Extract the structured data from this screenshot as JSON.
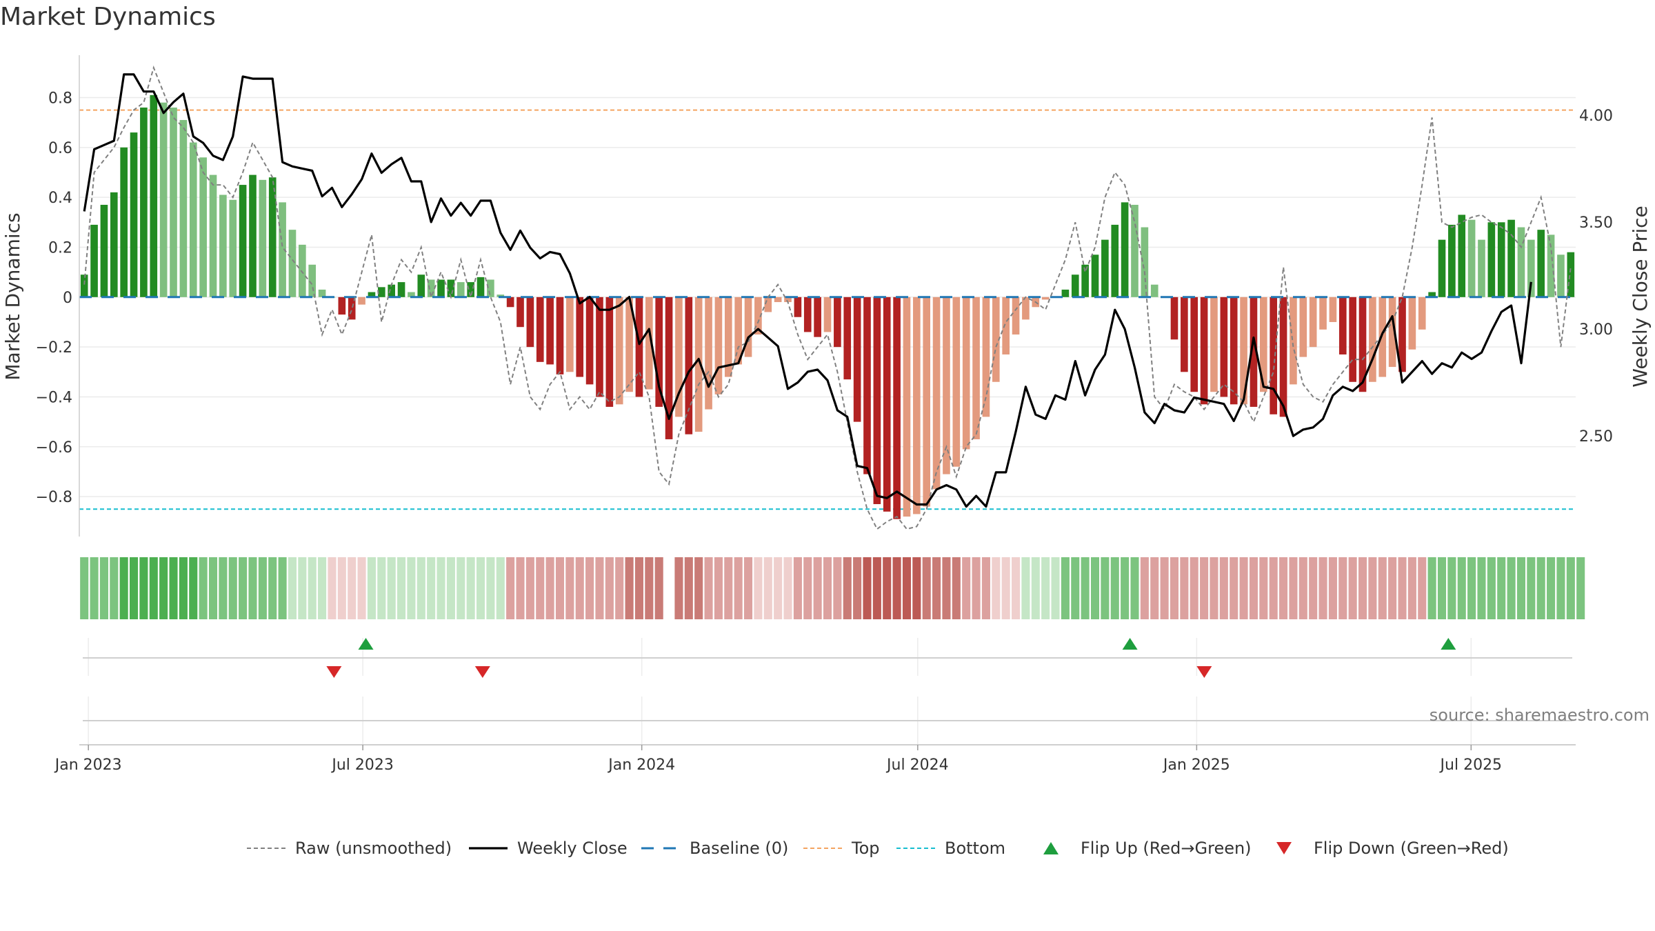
{
  "title": "Market Dynamics",
  "source": "source: sharemaestro.com",
  "colors": {
    "green_dark": "#228b22",
    "green_light": "#7fbf7f",
    "red_dark": "#b22222",
    "red_light": "#e39a7e",
    "price": "#000000",
    "raw": "#808080",
    "baseline": "#1f77b4",
    "top": "#f4a460",
    "bottom": "#17becf",
    "flip_up": "#1e9e3e",
    "flip_down": "#d62728"
  },
  "chart_data": {
    "type": "bar",
    "title": "Market Dynamics",
    "ylabel": "Market Dynamics",
    "y2label": "Weekly Close Price",
    "ylim": [
      -0.96,
      0.97
    ],
    "y2lim": [
      2.03,
      4.28
    ],
    "yticks": [
      0.8,
      0.6,
      0.4,
      0.2,
      0,
      -0.2,
      -0.4,
      -0.6,
      -0.8
    ],
    "ytick_labels": [
      "0.8",
      "0.6",
      "0.4",
      "0.2",
      "0",
      "−0.2",
      "−0.4",
      "−0.6",
      "−0.8"
    ],
    "y2ticks": [
      4.0,
      3.5,
      3.0,
      2.5
    ],
    "y2tick_labels": [
      "4.00",
      "3.50",
      "3.00",
      "2.50"
    ],
    "x_start": "2022-12-26",
    "x_end": "2025-09-08",
    "xticks": [
      "2023-01-01",
      "2023-07-01",
      "2024-01-01",
      "2024-07-01",
      "2025-01-01",
      "2025-07-01"
    ],
    "xtick_labels": [
      "Jan 2023",
      "Jul 2023",
      "Jan 2024",
      "Jul 2024",
      "Jan 2025",
      "Jul 2025"
    ],
    "top_line": 0.75,
    "bottom_line": -0.85,
    "baseline": 0,
    "bars": [
      0.09,
      0.29,
      0.37,
      0.42,
      0.6,
      0.66,
      0.76,
      0.81,
      0.78,
      0.76,
      0.71,
      0.62,
      0.56,
      0.49,
      0.41,
      0.39,
      0.45,
      0.49,
      0.47,
      0.48,
      0.38,
      0.27,
      0.21,
      0.13,
      0.03,
      0.0,
      -0.07,
      -0.09,
      -0.03,
      0.02,
      0.04,
      0.05,
      0.06,
      0.02,
      0.09,
      0.07,
      0.07,
      0.07,
      0.06,
      0.06,
      0.08,
      0.07,
      0.01,
      -0.04,
      -0.12,
      -0.2,
      -0.26,
      -0.27,
      -0.31,
      -0.3,
      -0.32,
      -0.35,
      -0.4,
      -0.44,
      -0.43,
      -0.38,
      -0.4,
      -0.37,
      -0.44,
      -0.57,
      -0.48,
      -0.55,
      -0.54,
      -0.45,
      -0.39,
      -0.32,
      -0.27,
      -0.24,
      -0.15,
      -0.06,
      -0.02,
      -0.02,
      -0.08,
      -0.14,
      -0.16,
      -0.14,
      -0.2,
      -0.33,
      -0.5,
      -0.71,
      -0.83,
      -0.86,
      -0.89,
      -0.88,
      -0.87,
      -0.84,
      -0.77,
      -0.71,
      -0.68,
      -0.61,
      -0.57,
      -0.48,
      -0.34,
      -0.23,
      -0.15,
      -0.09,
      -0.04,
      -0.01,
      0.0,
      0.03,
      0.09,
      0.13,
      0.17,
      0.23,
      0.29,
      0.38,
      0.37,
      0.28,
      0.05,
      0.0,
      -0.17,
      -0.3,
      -0.38,
      -0.43,
      -0.38,
      -0.4,
      -0.43,
      -0.43,
      -0.44,
      -0.38,
      -0.47,
      -0.48,
      -0.35,
      -0.24,
      -0.2,
      -0.13,
      -0.1,
      -0.23,
      -0.34,
      -0.38,
      -0.34,
      -0.32,
      -0.28,
      -0.3,
      -0.21,
      -0.13,
      0.02,
      0.23,
      0.29,
      0.33,
      0.31,
      0.23,
      0.3,
      0.3,
      0.31,
      0.28,
      0.23,
      0.27,
      0.25,
      0.17,
      0.18
    ],
    "raw": [
      0.05,
      0.5,
      0.55,
      0.6,
      0.68,
      0.75,
      0.78,
      0.92,
      0.82,
      0.72,
      0.68,
      0.62,
      0.5,
      0.45,
      0.45,
      0.4,
      0.5,
      0.62,
      0.55,
      0.48,
      0.2,
      0.15,
      0.1,
      0.05,
      -0.15,
      -0.05,
      -0.15,
      -0.05,
      0.1,
      0.25,
      -0.1,
      0.05,
      0.15,
      0.1,
      0.2,
      0.0,
      0.1,
      0.0,
      0.15,
      0.0,
      0.15,
      0.0,
      -0.1,
      -0.35,
      -0.2,
      -0.4,
      -0.45,
      -0.35,
      -0.3,
      -0.45,
      -0.4,
      -0.45,
      -0.38,
      -0.42,
      -0.4,
      -0.35,
      -0.3,
      -0.4,
      -0.7,
      -0.75,
      -0.55,
      -0.45,
      -0.35,
      -0.3,
      -0.4,
      -0.35,
      -0.2,
      -0.18,
      -0.1,
      0.0,
      0.05,
      -0.02,
      -0.15,
      -0.25,
      -0.2,
      -0.15,
      -0.3,
      -0.5,
      -0.7,
      -0.85,
      -0.93,
      -0.9,
      -0.88,
      -0.93,
      -0.92,
      -0.85,
      -0.7,
      -0.6,
      -0.72,
      -0.6,
      -0.55,
      -0.4,
      -0.2,
      -0.1,
      -0.05,
      0.0,
      -0.02,
      -0.05,
      0.05,
      0.15,
      0.3,
      0.1,
      0.2,
      0.4,
      0.5,
      0.45,
      0.3,
      0.1,
      -0.4,
      -0.45,
      -0.35,
      -0.38,
      -0.4,
      -0.45,
      -0.4,
      -0.35,
      -0.38,
      -0.42,
      -0.5,
      -0.4,
      -0.3,
      0.12,
      -0.2,
      -0.35,
      -0.4,
      -0.42,
      -0.35,
      -0.3,
      -0.25,
      -0.25,
      -0.2,
      -0.15,
      -0.1,
      0.0,
      0.2,
      0.45,
      0.72,
      0.3,
      0.28,
      0.3,
      0.32,
      0.33,
      0.3,
      0.28,
      0.25,
      0.2,
      0.3,
      0.4,
      0.2,
      -0.2,
      0.12
    ],
    "price": [
      3.55,
      3.84,
      3.86,
      3.88,
      4.19,
      4.19,
      4.11,
      4.11,
      4.01,
      4.06,
      4.1,
      3.9,
      3.87,
      3.81,
      3.79,
      3.9,
      4.18,
      4.17,
      4.17,
      4.17,
      3.78,
      3.76,
      3.75,
      3.74,
      3.62,
      3.66,
      3.57,
      3.63,
      3.7,
      3.82,
      3.73,
      3.77,
      3.8,
      3.69,
      3.69,
      3.5,
      3.61,
      3.53,
      3.59,
      3.53,
      3.6,
      3.6,
      3.45,
      3.37,
      3.46,
      3.38,
      3.33,
      3.36,
      3.35,
      3.26,
      3.12,
      3.15,
      3.09,
      3.09,
      3.11,
      3.15,
      2.93,
      3.0,
      2.73,
      2.58,
      2.7,
      2.8,
      2.86,
      2.73,
      2.82,
      2.83,
      2.84,
      2.96,
      3.0,
      2.96,
      2.92,
      2.72,
      2.75,
      2.8,
      2.81,
      2.76,
      2.62,
      2.59,
      2.36,
      2.35,
      2.22,
      2.21,
      2.24,
      2.21,
      2.18,
      2.18,
      2.25,
      2.27,
      2.25,
      2.17,
      2.22,
      2.17,
      2.33,
      2.33,
      2.52,
      2.73,
      2.6,
      2.58,
      2.69,
      2.67,
      2.85,
      2.69,
      2.81,
      2.88,
      3.09,
      3.0,
      2.82,
      2.61,
      2.56,
      2.65,
      2.62,
      2.61,
      2.68,
      2.67,
      2.66,
      2.65,
      2.57,
      2.67,
      2.96,
      2.73,
      2.72,
      2.64,
      2.5,
      2.53,
      2.54,
      2.58,
      2.69,
      2.73,
      2.71,
      2.75,
      2.86,
      2.98,
      3.06,
      2.75,
      2.8,
      2.85,
      2.79,
      2.84,
      2.82,
      2.89,
      2.86,
      2.89,
      2.99,
      3.08,
      3.11,
      2.84,
      3.22
    ],
    "state_strip": [
      2,
      2,
      2,
      2,
      3,
      3,
      3,
      3,
      3,
      3,
      3,
      3,
      2,
      2,
      2,
      2,
      2,
      2,
      2,
      2,
      2,
      1,
      1,
      1,
      1,
      -1,
      -1,
      -1,
      -1,
      1,
      1,
      1,
      1,
      1,
      1,
      1,
      1,
      1,
      1,
      1,
      1,
      1,
      1,
      -2,
      -2,
      -2,
      -2,
      -2,
      -2,
      -2,
      -2,
      -2,
      -2,
      -2,
      -2,
      -3,
      -3,
      -3,
      -3,
      null,
      -3,
      -3,
      -3,
      -2,
      -2,
      -2,
      -2,
      -2,
      -1,
      -1,
      -1,
      -1,
      -2,
      -2,
      -2,
      -2,
      -2,
      -3,
      -3,
      -4,
      -4,
      -4,
      -4,
      -4,
      -4,
      -3,
      -3,
      -3,
      -3,
      -2,
      -2,
      -2,
      -1,
      -1,
      -1,
      1,
      1,
      1,
      1,
      2,
      2,
      2,
      2,
      2,
      2,
      2,
      2,
      -2,
      -2,
      -2,
      -2,
      -2,
      -2,
      -2,
      -2,
      -2,
      -2,
      -2,
      -2,
      -2,
      -2,
      -2,
      -2,
      -2,
      -2,
      -2,
      -2,
      -2,
      -2,
      -2,
      -2,
      -2,
      -2,
      -2,
      -2,
      -2,
      2,
      2,
      2,
      2,
      2,
      2,
      2,
      2,
      2,
      2,
      2,
      2,
      2,
      2,
      2,
      2
    ],
    "flip_up": [
      "2023-07-03",
      "2024-11-18",
      "2025-06-16"
    ],
    "flip_down": [
      "2023-06-12",
      "2023-09-18",
      "2025-01-06"
    ],
    "legend": [
      {
        "key": "raw",
        "label": "Raw (unsmoothed)"
      },
      {
        "key": "price",
        "label": "Weekly Close"
      },
      {
        "key": "baseline",
        "label": "Baseline (0)"
      },
      {
        "key": "top",
        "label": "Top"
      },
      {
        "key": "bottom",
        "label": "Bottom"
      },
      {
        "key": "flip_up",
        "label": "Flip Up (Red→Green)"
      },
      {
        "key": "flip_down",
        "label": "Flip Down (Green→Red)"
      }
    ]
  }
}
